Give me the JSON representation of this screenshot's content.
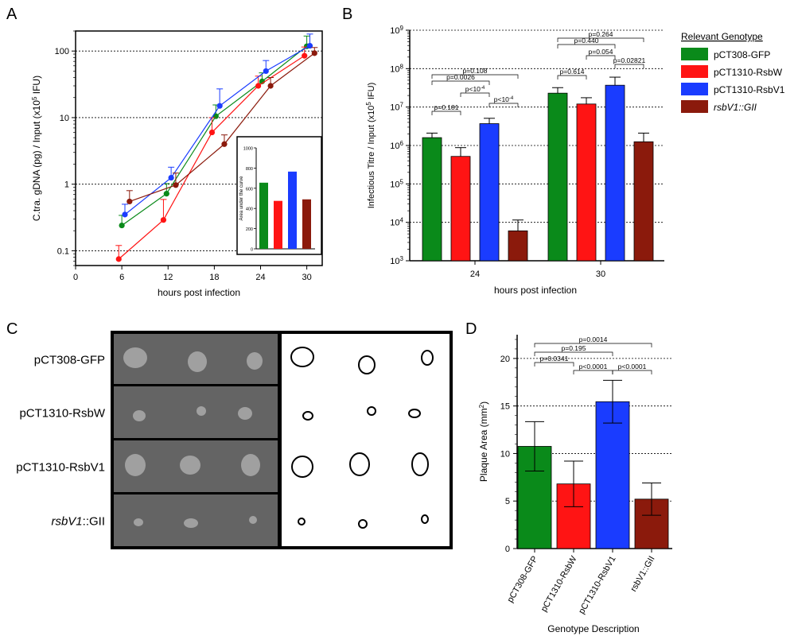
{
  "panels": {
    "a": "A",
    "b": "B",
    "c": "C",
    "d": "D"
  },
  "colors": {
    "green": "#0a8a1a",
    "red": "#ff1414",
    "blue": "#1a3cff",
    "darkred": "#8b1a0c"
  },
  "chart_data": [
    {
      "id": "A",
      "type": "line",
      "xlabel": "hours post infection",
      "ylabel": "C.tra. gDNA (pg) / Input (x10",
      "ylabel_sup": "5",
      "ylabel_end": " IFU)",
      "xlim": [
        0,
        32
      ],
      "ylim": [
        0.06,
        200
      ],
      "yscale": "log",
      "xticks": [
        "0",
        "6",
        "12",
        "18",
        "24",
        "30"
      ],
      "yticks": [
        "0.1",
        "1",
        "10",
        "100"
      ],
      "grid": "horizontal",
      "series": [
        {
          "color": "green",
          "x": [
            6,
            11.8,
            18.2,
            24.2,
            30
          ],
          "y": [
            0.24,
            0.72,
            10.5,
            35,
            118
          ],
          "err": [
            0.1,
            0.3,
            5,
            12,
            50
          ]
        },
        {
          "color": "red",
          "x": [
            5.6,
            11.4,
            17.7,
            23.7,
            29.7
          ],
          "y": [
            0.075,
            0.29,
            6,
            30,
            85
          ],
          "err": [
            0.045,
            0.3,
            4,
            12,
            30
          ]
        },
        {
          "color": "blue",
          "x": [
            6.4,
            12.4,
            18.7,
            24.7,
            30.4
          ],
          "y": [
            0.35,
            1.25,
            15,
            50,
            120
          ],
          "err": [
            0.15,
            0.55,
            12,
            22,
            60
          ]
        },
        {
          "color": "darkred",
          "x": [
            7,
            13,
            19.3,
            25.3,
            31
          ],
          "y": [
            0.55,
            0.97,
            4,
            30,
            93
          ],
          "err": [
            0.25,
            0.5,
            1.5,
            10,
            20
          ]
        }
      ],
      "inset": {
        "ylabel": "Area under the curve",
        "yticks": [
          "0",
          "200",
          "400",
          "600",
          "800",
          "1000"
        ],
        "ylim": [
          0,
          1000
        ],
        "values": [
          655,
          475,
          765,
          490
        ],
        "colors": [
          "green",
          "red",
          "blue",
          "darkred"
        ]
      }
    },
    {
      "id": "B",
      "type": "bar",
      "xlabel": "hours post infection",
      "ylabel": "Infectious Titre / Input (x10",
      "ylabel_sup": "5",
      "ylabel_end": " IFU)",
      "yscale": "log",
      "ylim_exp": [
        3,
        9
      ],
      "yticks": [
        {
          "b": "10",
          "e": "3"
        },
        {
          "b": "10",
          "e": "4"
        },
        {
          "b": "10",
          "e": "5"
        },
        {
          "b": "10",
          "e": "6"
        },
        {
          "b": "10",
          "e": "7"
        },
        {
          "b": "10",
          "e": "8"
        },
        {
          "b": "10",
          "e": "9"
        }
      ],
      "categories": [
        "24",
        "30"
      ],
      "grid": "horizontal",
      "series": [
        {
          "name": "pCT308-GFP",
          "color": "green",
          "values": [
            1600000.0,
            23000000.0
          ],
          "err": [
            2100000.0,
            32000000.0
          ]
        },
        {
          "name": "pCT1310-RsbW",
          "color": "red",
          "values": [
            520000.0,
            12000000.0
          ],
          "err": [
            880000.0,
            17500000.0
          ]
        },
        {
          "name": "pCT1310-RsbV1",
          "color": "blue",
          "values": [
            3700000.0,
            37000000.0
          ],
          "err": [
            5100000.0,
            60000000.0
          ]
        },
        {
          "name": "rsbV1::GII",
          "color": "darkred",
          "values": [
            6000.0,
            1250000.0
          ],
          "err": [
            11500.0,
            2100000.0
          ]
        }
      ],
      "legend_title": "Relevant Genotype",
      "legend_placement": "right",
      "annotations": [
        {
          "text": "p=0.181",
          "from": [
            0,
            0
          ],
          "to": [
            0,
            1
          ]
        },
        {
          "text": "p=0.0026",
          "from": [
            0,
            0
          ],
          "to": [
            0,
            2
          ]
        },
        {
          "text": "p=0.108",
          "from": [
            0,
            0
          ],
          "to": [
            0,
            3
          ]
        },
        {
          "text": "p<10",
          "sup": "-4",
          "from": [
            0,
            1
          ],
          "to": [
            0,
            2
          ]
        },
        {
          "text": "p<10",
          "sup": "-4",
          "from": [
            0,
            2
          ],
          "to": [
            0,
            3
          ]
        },
        {
          "text": "p=0.614",
          "from": [
            1,
            0
          ],
          "to": [
            1,
            1
          ]
        },
        {
          "text": "p=0.440",
          "from": [
            1,
            0
          ],
          "to": [
            1,
            2
          ]
        },
        {
          "text": "p=0.264",
          "from": [
            1,
            0
          ],
          "to": [
            1,
            3
          ]
        },
        {
          "text": "p=0.054",
          "from": [
            1,
            1
          ],
          "to": [
            1,
            2
          ]
        },
        {
          "text": "p=0.02821",
          "from": [
            1,
            2
          ],
          "to": [
            1,
            3
          ]
        }
      ]
    },
    {
      "id": "D",
      "type": "bar",
      "xlabel": "Genotype Description",
      "ylabel": "Plaque Area (mm",
      "ylabel_sup": "2",
      "ylabel_end": ")",
      "ylim": [
        0,
        22.5
      ],
      "yticks": [
        "0",
        "5",
        "10",
        "15",
        "20"
      ],
      "grid": "horizontal",
      "categories": [
        "pCT308-GFP",
        "pCT1310-RsbW",
        "pCT1310-RsbV1",
        "rsbV1::GII"
      ],
      "colors": [
        "green",
        "red",
        "blue",
        "darkred"
      ],
      "values": [
        10.75,
        6.8,
        15.45,
        5.2
      ],
      "err": [
        2.6,
        2.4,
        2.25,
        1.7
      ],
      "annotations": [
        {
          "text": "p=0.0014",
          "from": 0,
          "to": 3
        },
        {
          "text": "p=0.195",
          "from": 0,
          "to": 2
        },
        {
          "text": "p=0.0341",
          "from": 0,
          "to": 1
        },
        {
          "text": "p<0.0001",
          "from": 1,
          "to": 2
        },
        {
          "text": "p<0.0001",
          "from": 2,
          "to": 3
        }
      ]
    }
  ],
  "panel_c": {
    "rows": [
      {
        "label": "pCT308-GFP"
      },
      {
        "label": "pCT1310-RsbW"
      },
      {
        "label": "pCT1310-RsbV1"
      },
      {
        "label_italic": "rsbV1",
        "label_rest": "::GII"
      }
    ]
  }
}
